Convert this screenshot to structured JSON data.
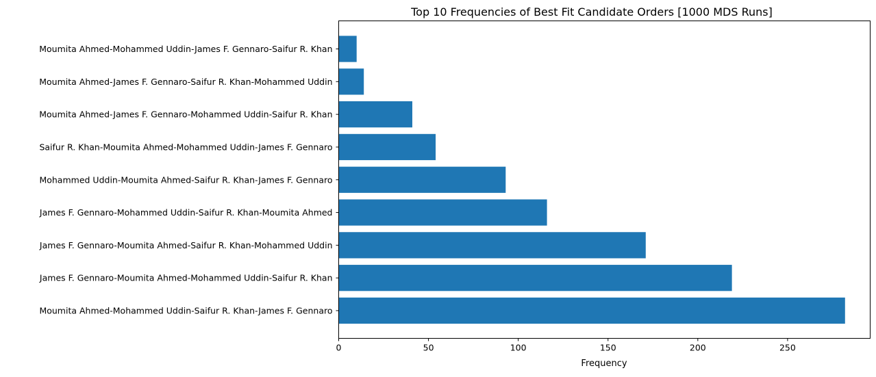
{
  "chart_data": {
    "type": "bar",
    "orientation": "horizontal",
    "title": "Top 10 Frequencies of Best Fit Candidate Orders [1000 MDS Runs]",
    "xlabel": "Frequency",
    "ylabel": "",
    "xlim": [
      0,
      296
    ],
    "xticks": [
      0,
      50,
      100,
      150,
      200,
      250
    ],
    "categories": [
      "Moumita Ahmed-Mohammed Uddin-Saifur R. Khan-James F. Gennaro",
      "James F. Gennaro-Moumita Ahmed-Mohammed Uddin-Saifur R. Khan",
      "James F. Gennaro-Moumita Ahmed-Saifur R. Khan-Mohammed Uddin",
      "James F. Gennaro-Mohammed Uddin-Saifur R. Khan-Moumita Ahmed",
      "Mohammed Uddin-Moumita Ahmed-Saifur R. Khan-James F. Gennaro",
      "Saifur R. Khan-Moumita Ahmed-Mohammed Uddin-James F. Gennaro",
      "Moumita Ahmed-James F. Gennaro-Mohammed Uddin-Saifur R. Khan",
      "Moumita Ahmed-James F. Gennaro-Saifur R. Khan-Mohammed Uddin",
      "Moumita Ahmed-Mohammed Uddin-James F. Gennaro-Saifur R. Khan"
    ],
    "values": [
      282,
      219,
      171,
      116,
      93,
      54,
      41,
      14,
      10
    ],
    "bar_color": "#1f77b4",
    "grid": false,
    "legend": "none"
  }
}
